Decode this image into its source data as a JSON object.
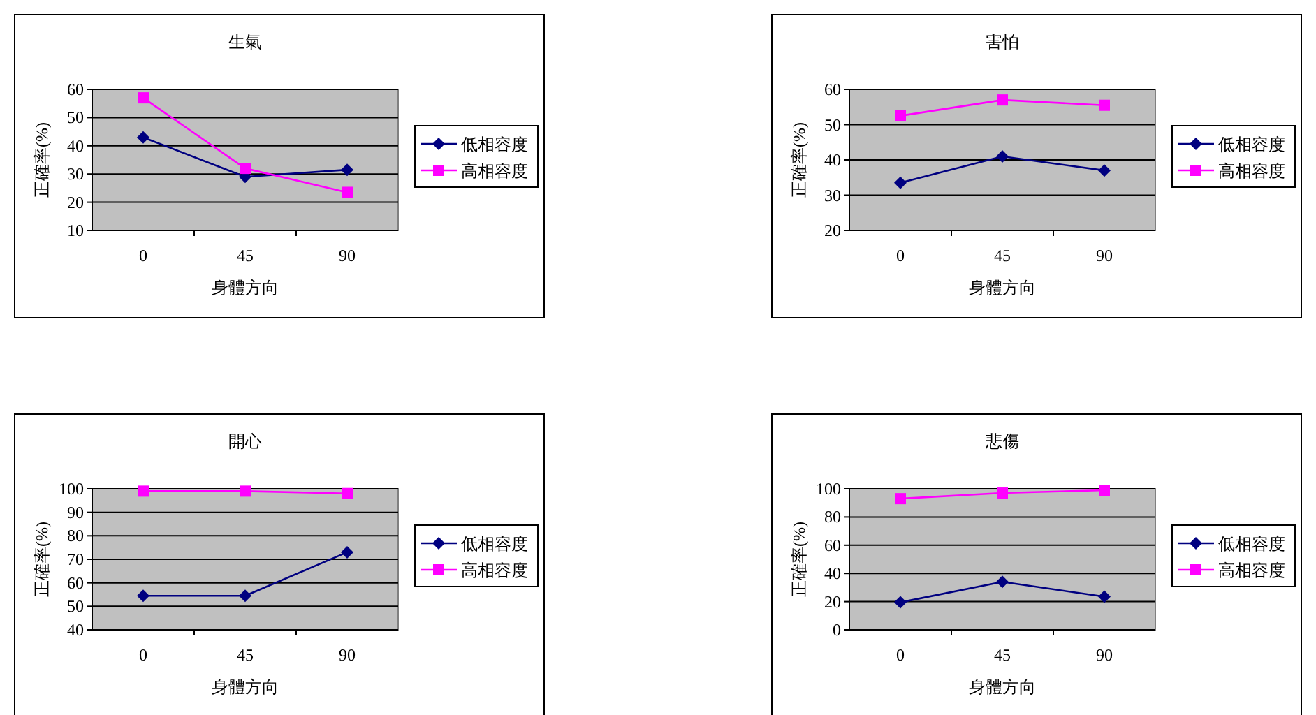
{
  "chart_data": [
    {
      "type": "line",
      "title": "生氣",
      "xlabel": "身體方向",
      "ylabel": "正確率(%)",
      "categories": [
        "0",
        "45",
        "90"
      ],
      "ylim": [
        10,
        60
      ],
      "yticks": [
        10,
        20,
        30,
        40,
        50,
        60
      ],
      "grid": "y",
      "legend": "right",
      "series": [
        {
          "name": "低相容度",
          "color": "#000080",
          "marker": "diamond",
          "values": [
            43,
            29,
            31.5
          ]
        },
        {
          "name": "高相容度",
          "color": "#ff00ff",
          "marker": "square",
          "values": [
            57,
            32,
            23.5
          ]
        }
      ]
    },
    {
      "type": "line",
      "title": "害怕",
      "xlabel": "身體方向",
      "ylabel": "正確率(%)",
      "categories": [
        "0",
        "45",
        "90"
      ],
      "ylim": [
        20,
        60
      ],
      "yticks": [
        20,
        30,
        40,
        50,
        60
      ],
      "grid": "y",
      "legend": "right",
      "series": [
        {
          "name": "低相容度",
          "color": "#000080",
          "marker": "diamond",
          "values": [
            33.5,
            41,
            37
          ]
        },
        {
          "name": "高相容度",
          "color": "#ff00ff",
          "marker": "square",
          "values": [
            52.5,
            57,
            55.5
          ]
        }
      ]
    },
    {
      "type": "line",
      "title": "開心",
      "xlabel": "身體方向",
      "ylabel": "正確率(%)",
      "categories": [
        "0",
        "45",
        "90"
      ],
      "ylim": [
        40,
        100
      ],
      "yticks": [
        40,
        50,
        60,
        70,
        80,
        90,
        100
      ],
      "grid": "y",
      "legend": "right",
      "series": [
        {
          "name": "低相容度",
          "color": "#000080",
          "marker": "diamond",
          "values": [
            54.5,
            54.5,
            73
          ]
        },
        {
          "name": "高相容度",
          "color": "#ff00ff",
          "marker": "square",
          "values": [
            99,
            99,
            98
          ]
        }
      ]
    },
    {
      "type": "line",
      "title": "悲傷",
      "xlabel": "身體方向",
      "ylabel": "正確率(%)",
      "categories": [
        "0",
        "45",
        "90"
      ],
      "ylim": [
        0,
        100
      ],
      "yticks": [
        0,
        20,
        40,
        60,
        80,
        100
      ],
      "grid": "y",
      "legend": "right",
      "series": [
        {
          "name": "低相容度",
          "color": "#000080",
          "marker": "diamond",
          "values": [
            19.5,
            34,
            23.5
          ]
        },
        {
          "name": "高相容度",
          "color": "#ff00ff",
          "marker": "square",
          "values": [
            93,
            97,
            99
          ]
        }
      ]
    }
  ]
}
